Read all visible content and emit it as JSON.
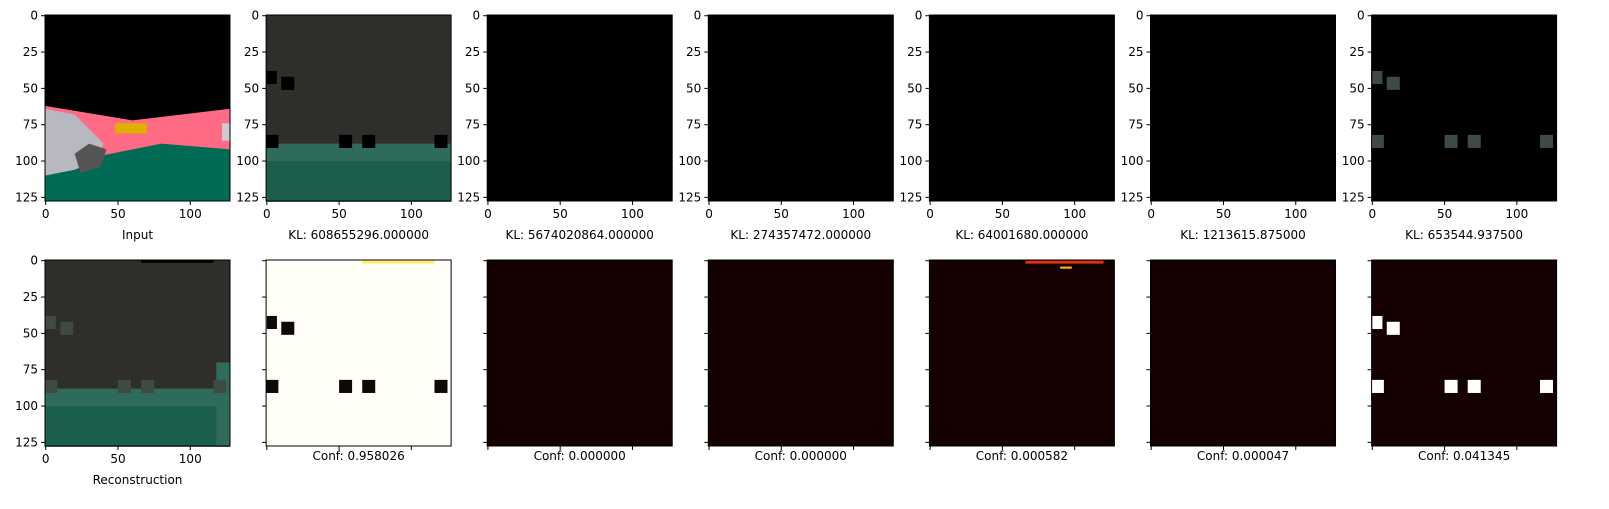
{
  "axes": {
    "xlim": [
      -0.5,
      127.5
    ],
    "ylim": [
      127.5,
      -0.5
    ],
    "xticks": [
      0,
      50,
      100
    ],
    "yticks": [
      0,
      25,
      50,
      75,
      100,
      125
    ]
  },
  "top_row": [
    {
      "label": "Input"
    },
    {
      "label": "KL: 608655296.000000"
    },
    {
      "label": "KL: 5674020864.000000"
    },
    {
      "label": "KL: 274357472.000000"
    },
    {
      "label": "KL: 64001680.000000"
    },
    {
      "label": "KL: 1213615.875000"
    },
    {
      "label": "KL: 653544.937500"
    }
  ],
  "bottom_row": [
    {
      "label": "Reconstruction"
    },
    {
      "label": "Conf: 0.958026"
    },
    {
      "label": "Conf: 0.000000"
    },
    {
      "label": "Conf: 0.000000"
    },
    {
      "label": "Conf: 0.000582"
    },
    {
      "label": "Conf: 0.000047"
    },
    {
      "label": "Conf: 0.041345"
    }
  ]
}
